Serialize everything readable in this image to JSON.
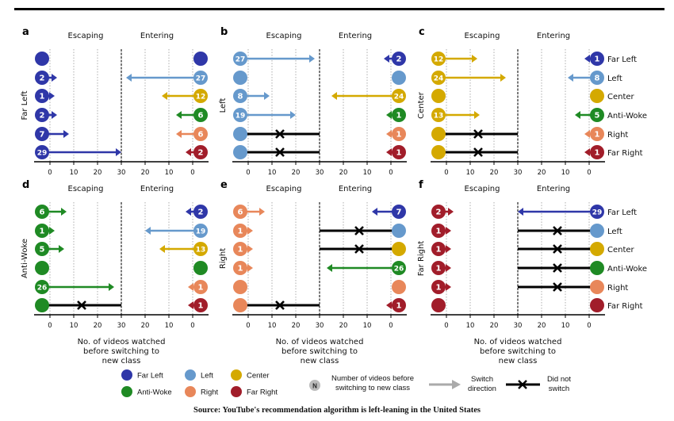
{
  "figure": {
    "section_labels": {
      "escaping": "Escaping",
      "entering": "Entering"
    },
    "xlabel": [
      "No. of videos watched",
      "before switching to",
      "new class"
    ],
    "tick_labels": [
      "0",
      "10",
      "20",
      "30",
      "20",
      "10",
      "0"
    ],
    "caption": "Source: YouTube's recommendation algorithm is left-leaning in the United States"
  },
  "classes": [
    {
      "name": "Far Left",
      "color": "#2f37a8"
    },
    {
      "name": "Left",
      "color": "#6699cc"
    },
    {
      "name": "Center",
      "color": "#d4a900"
    },
    {
      "name": "Anti-Woke",
      "color": "#1f8a24"
    },
    {
      "name": "Right",
      "color": "#e8875a"
    },
    {
      "name": "Far Right",
      "color": "#a11d2a"
    }
  ],
  "legend": {
    "number_label": "Number of videos before switching to new class",
    "number_label_lines": [
      "Number of videos before",
      "switching to new class"
    ],
    "number_symbol": "N",
    "switch_lines": [
      "Switch",
      "direction"
    ],
    "noswitch_lines": [
      "Did not",
      "switch"
    ]
  },
  "chart_data": [
    {
      "type": "dumbbell-arrow",
      "panel": "a",
      "class": "Far Left",
      "xlabel": "",
      "axis_ticks": [
        "0",
        "10",
        "20",
        "30",
        "20",
        "10",
        "0"
      ],
      "xlim": [
        0,
        30
      ],
      "escaping": [
        null,
        2,
        1,
        2,
        7,
        29
      ],
      "entering": [
        null,
        27,
        12,
        6,
        6,
        2
      ],
      "rows": [
        "Far Left",
        "Left",
        "Center",
        "Anti-Woke",
        "Right",
        "Far Right"
      ]
    },
    {
      "type": "dumbbell-arrow",
      "panel": "b",
      "class": "Left",
      "xlabel": "",
      "xlim": [
        0,
        30
      ],
      "escaping": [
        27,
        null,
        8,
        19,
        "no-switch",
        "no-switch"
      ],
      "entering": [
        2,
        null,
        24,
        1,
        1,
        1
      ],
      "rows": [
        "Far Left",
        "Left",
        "Center",
        "Anti-Woke",
        "Right",
        "Far Right"
      ]
    },
    {
      "type": "dumbbell-arrow",
      "panel": "c",
      "class": "Center",
      "xlabel": "",
      "xlim": [
        0,
        30
      ],
      "escaping": [
        12,
        24,
        null,
        13,
        "no-switch",
        "no-switch"
      ],
      "entering": [
        1,
        8,
        null,
        5,
        1,
        1
      ],
      "rows": [
        "Far Left",
        "Left",
        "Center",
        "Anti-Woke",
        "Right",
        "Far Right"
      ],
      "row_labels_shown": true
    },
    {
      "type": "dumbbell-arrow",
      "panel": "d",
      "class": "Anti-Woke",
      "xlabel": "No. of videos watched before switching to new class",
      "xlim": [
        0,
        30
      ],
      "escaping": [
        6,
        1,
        5,
        null,
        26,
        "no-switch"
      ],
      "entering": [
        2,
        19,
        13,
        null,
        1,
        1
      ],
      "rows": [
        "Far Left",
        "Left",
        "Center",
        "Anti-Woke",
        "Right",
        "Far Right"
      ]
    },
    {
      "type": "dumbbell-arrow",
      "panel": "e",
      "class": "Right",
      "xlabel": "No. of videos watched before switching to new class",
      "xlim": [
        0,
        30
      ],
      "escaping": [
        6,
        1,
        1,
        1,
        null,
        "no-switch"
      ],
      "entering": [
        7,
        "no-switch",
        "no-switch",
        26,
        null,
        1
      ],
      "rows": [
        "Far Left",
        "Left",
        "Center",
        "Anti-Woke",
        "Right",
        "Far Right"
      ]
    },
    {
      "type": "dumbbell-arrow",
      "panel": "f",
      "class": "Far Right",
      "xlabel": "No. of videos watched before switching to new class",
      "xlim": [
        0,
        30
      ],
      "escaping": [
        2,
        1,
        1,
        1,
        1,
        null
      ],
      "entering": [
        29,
        "no-switch",
        "no-switch",
        "no-switch",
        "no-switch",
        null
      ],
      "rows": [
        "Far Left",
        "Left",
        "Center",
        "Anti-Woke",
        "Right",
        "Far Right"
      ],
      "row_labels_shown": true
    }
  ]
}
